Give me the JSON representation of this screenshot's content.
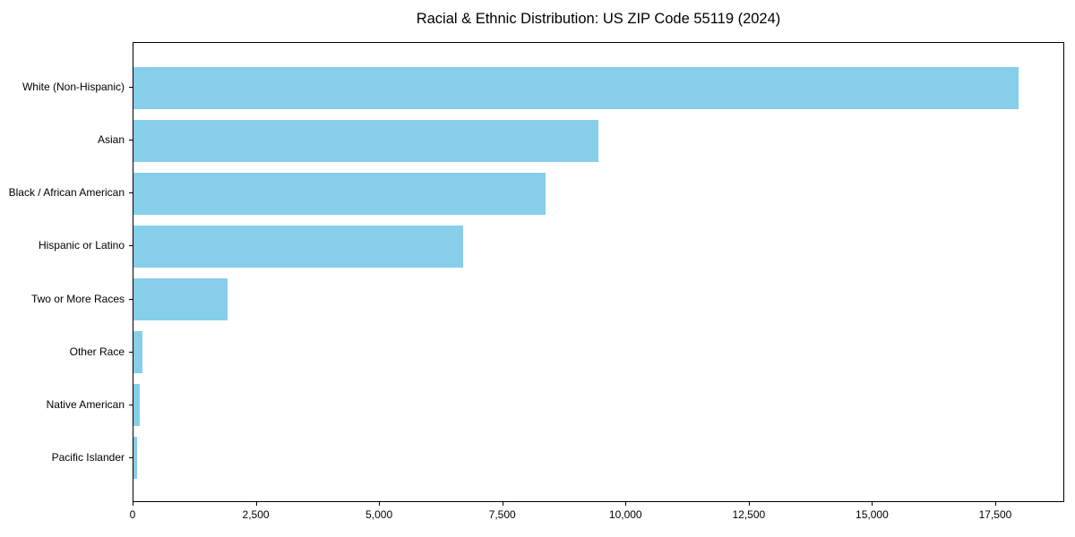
{
  "chart_data": {
    "type": "bar",
    "orientation": "horizontal",
    "title": "Racial & Ethnic Distribution: US ZIP Code 55119 (2024)",
    "categories": [
      "White (Non-Hispanic)",
      "Asian",
      "Black / African American",
      "Hispanic or Latino",
      "Two or More Races",
      "Other Race",
      "Native American",
      "Pacific Islander"
    ],
    "values": [
      17950,
      9430,
      8360,
      6690,
      1910,
      180,
      130,
      75
    ],
    "xlabel": "",
    "ylabel": "",
    "xlim": [
      0,
      18900
    ],
    "x_ticks": [
      0,
      2500,
      5000,
      7500,
      10000,
      12500,
      15000,
      17500
    ],
    "x_tick_labels": [
      "0",
      "2,500",
      "5,000",
      "7,500",
      "10,000",
      "12,500",
      "15,000",
      "17,500"
    ],
    "grid": false,
    "legend": "none",
    "bar_color": "#87CEEB",
    "axis_color": "#000000",
    "background_color": "#FFFFFF"
  }
}
